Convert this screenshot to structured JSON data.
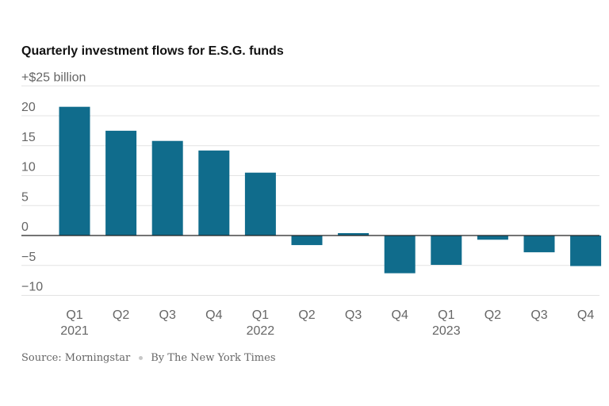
{
  "chart_data": {
    "type": "bar",
    "title": "Quarterly investment flows for E.S.G. funds",
    "ylabel": "",
    "xlabel": "",
    "y_top_label": "+$25 billion",
    "y_ticks": [
      {
        "value": 20,
        "label": "20"
      },
      {
        "value": 15,
        "label": "15"
      },
      {
        "value": 10,
        "label": "10"
      },
      {
        "value": 5,
        "label": "5"
      },
      {
        "value": 0,
        "label": "0"
      },
      {
        "value": -5,
        "label": "−5"
      },
      {
        "value": -10,
        "label": "−10"
      }
    ],
    "ylim": [
      -10,
      25
    ],
    "categories": [
      "Q1",
      "Q2",
      "Q3",
      "Q4",
      "Q1",
      "Q2",
      "Q3",
      "Q4",
      "Q1",
      "Q2",
      "Q3",
      "Q4"
    ],
    "year_labels": [
      "2021",
      "",
      "",
      "",
      "2022",
      "",
      "",
      "",
      "2023",
      "",
      "",
      ""
    ],
    "values": [
      21.5,
      17.5,
      15.8,
      14.2,
      10.5,
      -1.6,
      0.4,
      -6.3,
      -4.9,
      -0.7,
      -2.8,
      -5.1
    ],
    "bar_color": "#106c8c",
    "grid": true
  },
  "footer": {
    "source": "Source: Morningstar",
    "byline": "By The New York Times"
  }
}
